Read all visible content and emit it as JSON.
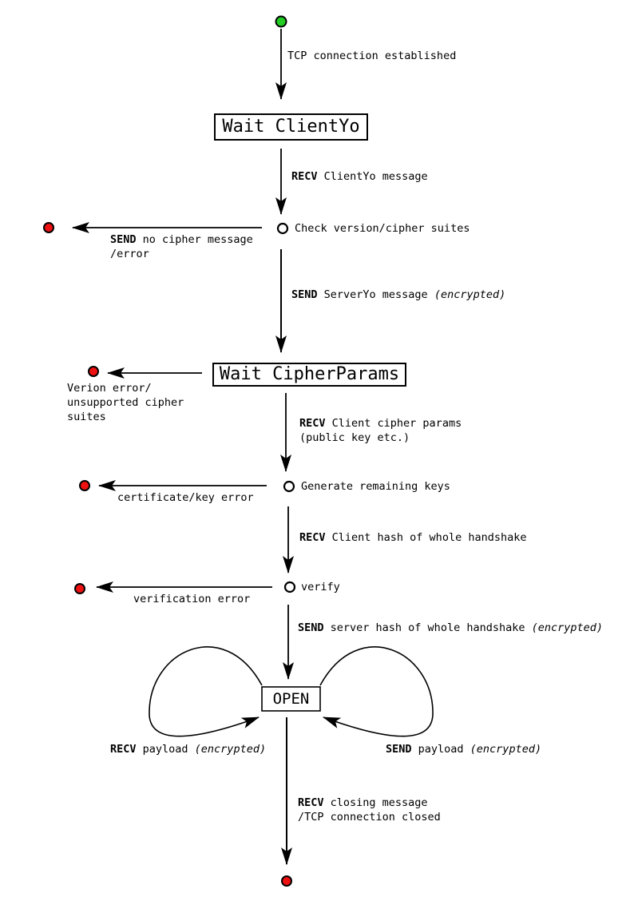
{
  "states": {
    "wait_clientyo": "Wait ClientYo",
    "wait_cipherparams": "Wait CipherParams",
    "open": "OPEN"
  },
  "checks": {
    "check_version": "Check version/cipher suites",
    "generate_keys": "Generate remaining keys",
    "verify": "verify"
  },
  "transitions": {
    "tcp_established": "TCP connection established",
    "recv_clientyo": {
      "kw": "RECV",
      "text": " ClientYo message"
    },
    "send_serveryo": {
      "kw": "SEND",
      "text": " ServerYo message ",
      "em": "(encrypted)"
    },
    "recv_cipher_params": {
      "kw": "RECV",
      "text": " Client cipher params",
      "line2": "(public key etc.)"
    },
    "recv_client_hash": {
      "kw": "RECV",
      "text": " Client hash of whole handshake"
    },
    "send_server_hash": {
      "kw": "SEND",
      "text": " server hash of whole handshake ",
      "em": "(encrypted)"
    },
    "recv_payload": {
      "kw": "RECV",
      "text": " payload ",
      "em": "(encrypted)"
    },
    "send_payload": {
      "kw": "SEND",
      "text": " payload ",
      "em": "(encrypted)"
    },
    "recv_closing": {
      "kw": "RECV",
      "text": " closing message",
      "line2": "/TCP connection closed"
    }
  },
  "errors": {
    "no_cipher": {
      "kw": "SEND",
      "text": " no cipher message",
      "line2": "/error"
    },
    "version_error": {
      "line1": "Verion error/",
      "line2": "unsupported cipher",
      "line3": "suites"
    },
    "cert_key_error": "certificate/key error",
    "verification_error": "verification error"
  },
  "colors": {
    "start": "#22cc22",
    "end": "#ee1111",
    "stroke": "#000000"
  }
}
